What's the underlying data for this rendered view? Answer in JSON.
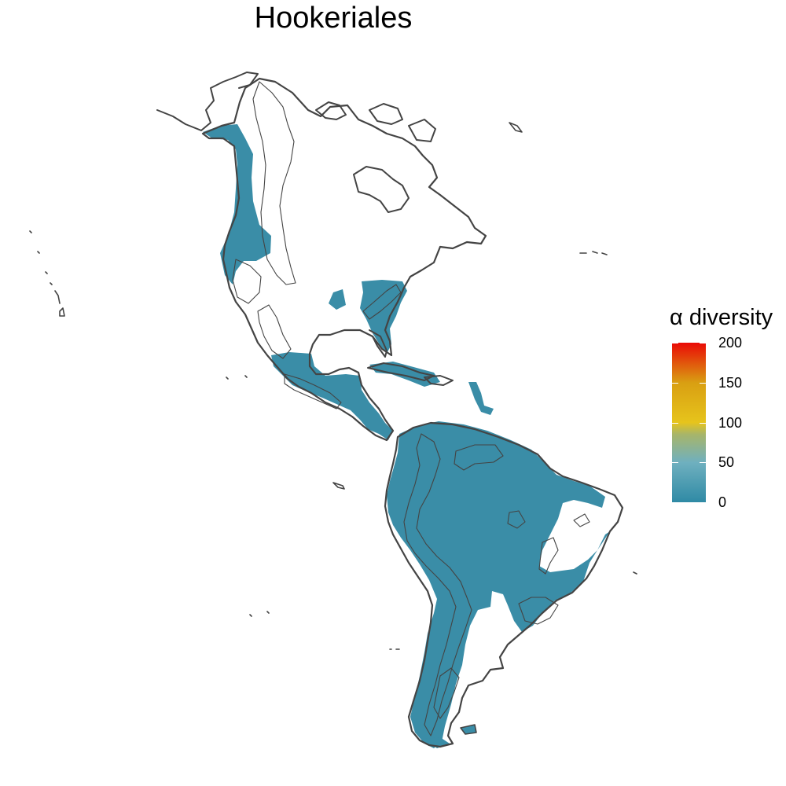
{
  "title": "Hookeriales",
  "legend": {
    "title": "α diversity",
    "min": 0,
    "max": 200,
    "ticks": [
      {
        "value": 200,
        "label": "200"
      },
      {
        "value": 150,
        "label": "150"
      },
      {
        "value": 100,
        "label": "100"
      },
      {
        "value": 50,
        "label": "50"
      },
      {
        "value": 0,
        "label": "0"
      }
    ],
    "colors": [
      {
        "value": 0,
        "color": "#2f8aa5"
      },
      {
        "value": 50,
        "color": "#6fb0bf"
      },
      {
        "value": 85,
        "color": "#a7b56a"
      },
      {
        "value": 100,
        "color": "#e6c41c"
      },
      {
        "value": 150,
        "color": "#d99f12"
      },
      {
        "value": 200,
        "color": "#ea0a06"
      }
    ]
  },
  "styles": {
    "fill_color": "#3a8da7",
    "outline_color": "#444444",
    "background": "#ffffff"
  }
}
